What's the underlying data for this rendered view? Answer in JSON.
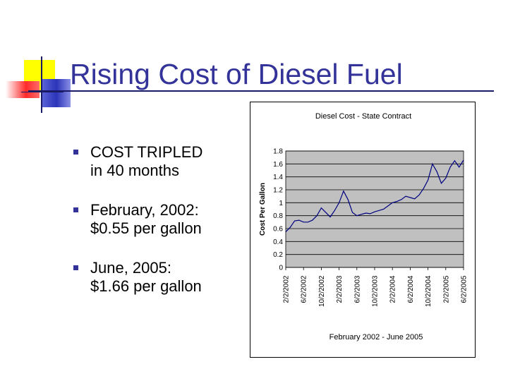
{
  "slide": {
    "title": "Rising Cost of Diesel Fuel",
    "bullets": [
      {
        "lines": [
          "COST TRIPLED",
          "in 40 months"
        ]
      },
      {
        "lines": [
          "February, 2002:",
          "$0.55 per gallon"
        ]
      },
      {
        "lines": [
          "June, 2005:",
          "$1.66 per gallon"
        ]
      }
    ]
  },
  "chart_data": {
    "type": "line",
    "title": "Diesel Cost - State Contract",
    "xlabel": "February 2002 - June 2005",
    "ylabel": "Cost Per Gallon",
    "ylim": [
      0,
      1.8
    ],
    "yticks": [
      "0",
      "0.2",
      "0.4",
      "0.6",
      "0.8",
      "1",
      "1.2",
      "1.4",
      "1.6",
      "1.8"
    ],
    "xticks": [
      "2/2/2002",
      "6/2/2002",
      "10/2/2002",
      "2/2/2003",
      "6/2/2003",
      "10/2/2003",
      "2/2/2004",
      "6/2/2004",
      "10/2/2004",
      "2/2/2005",
      "6/2/2005"
    ],
    "grid": true,
    "plot_background": "#c0c0c0",
    "line_color": "#000080",
    "series": [
      {
        "x": [
          "2/2/2002",
          "3/2/2002",
          "4/2/2002",
          "5/2/2002",
          "6/2/2002",
          "7/2/2002",
          "8/2/2002",
          "9/2/2002",
          "10/2/2002",
          "11/2/2002",
          "12/2/2002",
          "1/2/2003",
          "2/2/2003",
          "3/2/2003",
          "4/2/2003",
          "5/2/2003",
          "6/2/2003",
          "7/2/2003",
          "8/2/2003",
          "9/2/2003",
          "10/2/2003",
          "11/2/2003",
          "12/2/2003",
          "1/2/2004",
          "2/2/2004",
          "3/2/2004",
          "4/2/2004",
          "5/2/2004",
          "6/2/2004",
          "7/2/2004",
          "8/2/2004",
          "9/2/2004",
          "10/2/2004",
          "11/2/2004",
          "12/2/2004",
          "1/2/2005",
          "2/2/2005",
          "3/2/2005",
          "4/2/2005",
          "5/2/2005",
          "6/2/2005"
        ],
        "values": [
          0.55,
          0.62,
          0.72,
          0.73,
          0.7,
          0.7,
          0.73,
          0.8,
          0.92,
          0.85,
          0.78,
          0.88,
          1.0,
          1.18,
          1.05,
          0.85,
          0.8,
          0.82,
          0.84,
          0.83,
          0.86,
          0.88,
          0.9,
          0.95,
          1.0,
          1.02,
          1.05,
          1.1,
          1.08,
          1.06,
          1.12,
          1.22,
          1.35,
          1.6,
          1.48,
          1.3,
          1.38,
          1.55,
          1.65,
          1.55,
          1.66
        ]
      }
    ]
  }
}
